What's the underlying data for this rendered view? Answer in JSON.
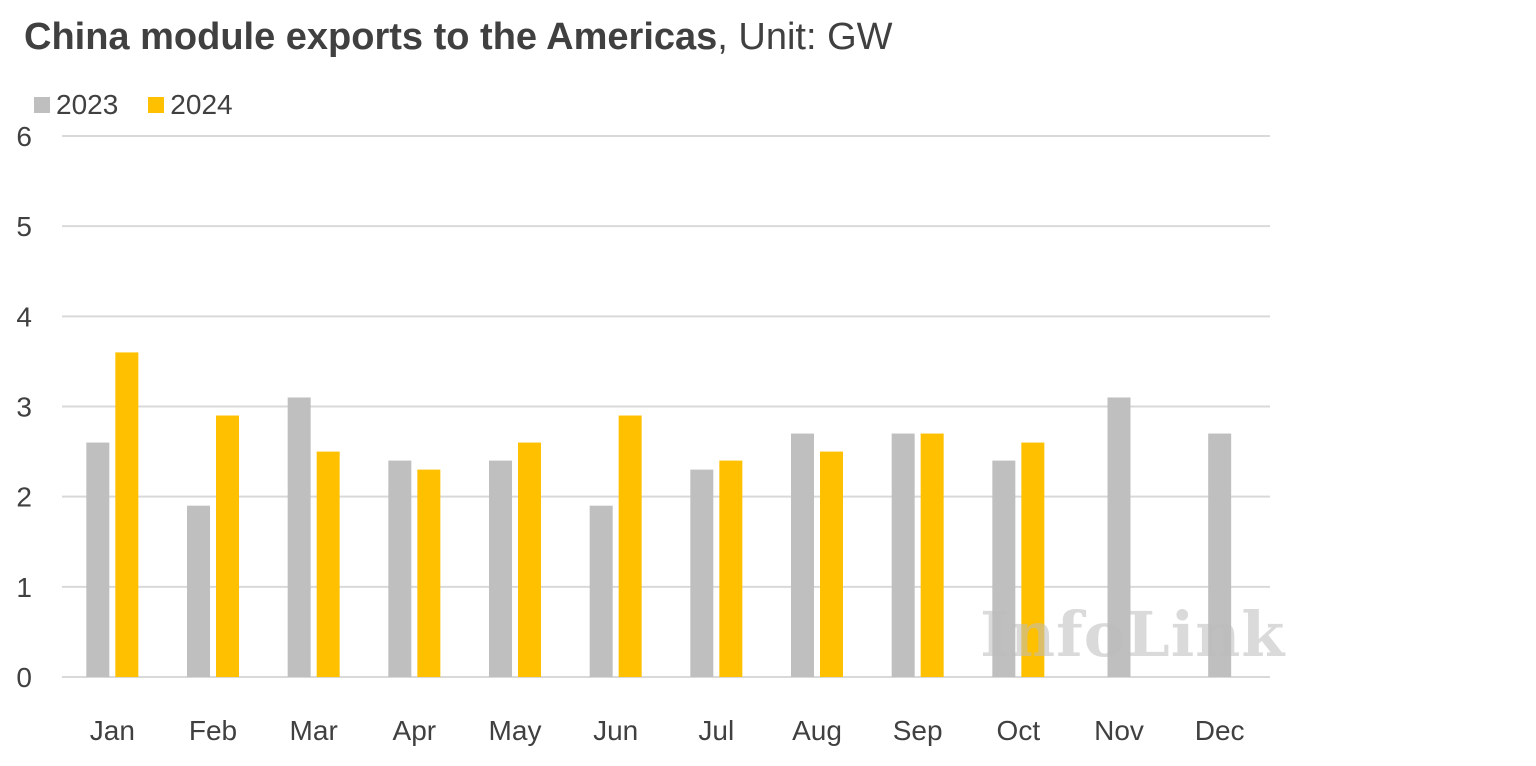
{
  "title": {
    "bold": "China module exports to the Americas",
    "unit": ", Unit: GW"
  },
  "watermark": "InfoLink",
  "colors": {
    "series_2023": "#bfbfbf",
    "series_2024": "#ffc000",
    "grid": "#d9d9d9",
    "text": "#404040"
  },
  "chart_data": {
    "type": "bar",
    "categories": [
      "Jan",
      "Feb",
      "Mar",
      "Apr",
      "May",
      "Jun",
      "Jul",
      "Aug",
      "Sep",
      "Oct",
      "Nov",
      "Dec"
    ],
    "series": [
      {
        "name": "2023",
        "values": [
          2.6,
          1.9,
          3.1,
          2.4,
          2.4,
          1.9,
          2.3,
          2.7,
          2.7,
          2.4,
          3.1,
          2.7
        ]
      },
      {
        "name": "2024",
        "values": [
          3.6,
          2.9,
          2.5,
          2.3,
          2.6,
          2.9,
          2.4,
          2.5,
          2.7,
          2.6,
          null,
          null
        ]
      }
    ],
    "ylim": [
      0,
      6
    ],
    "yticks": [
      "0",
      "1",
      "2",
      "3",
      "4",
      "5",
      "6"
    ],
    "grid": true,
    "legend": "top-left"
  }
}
